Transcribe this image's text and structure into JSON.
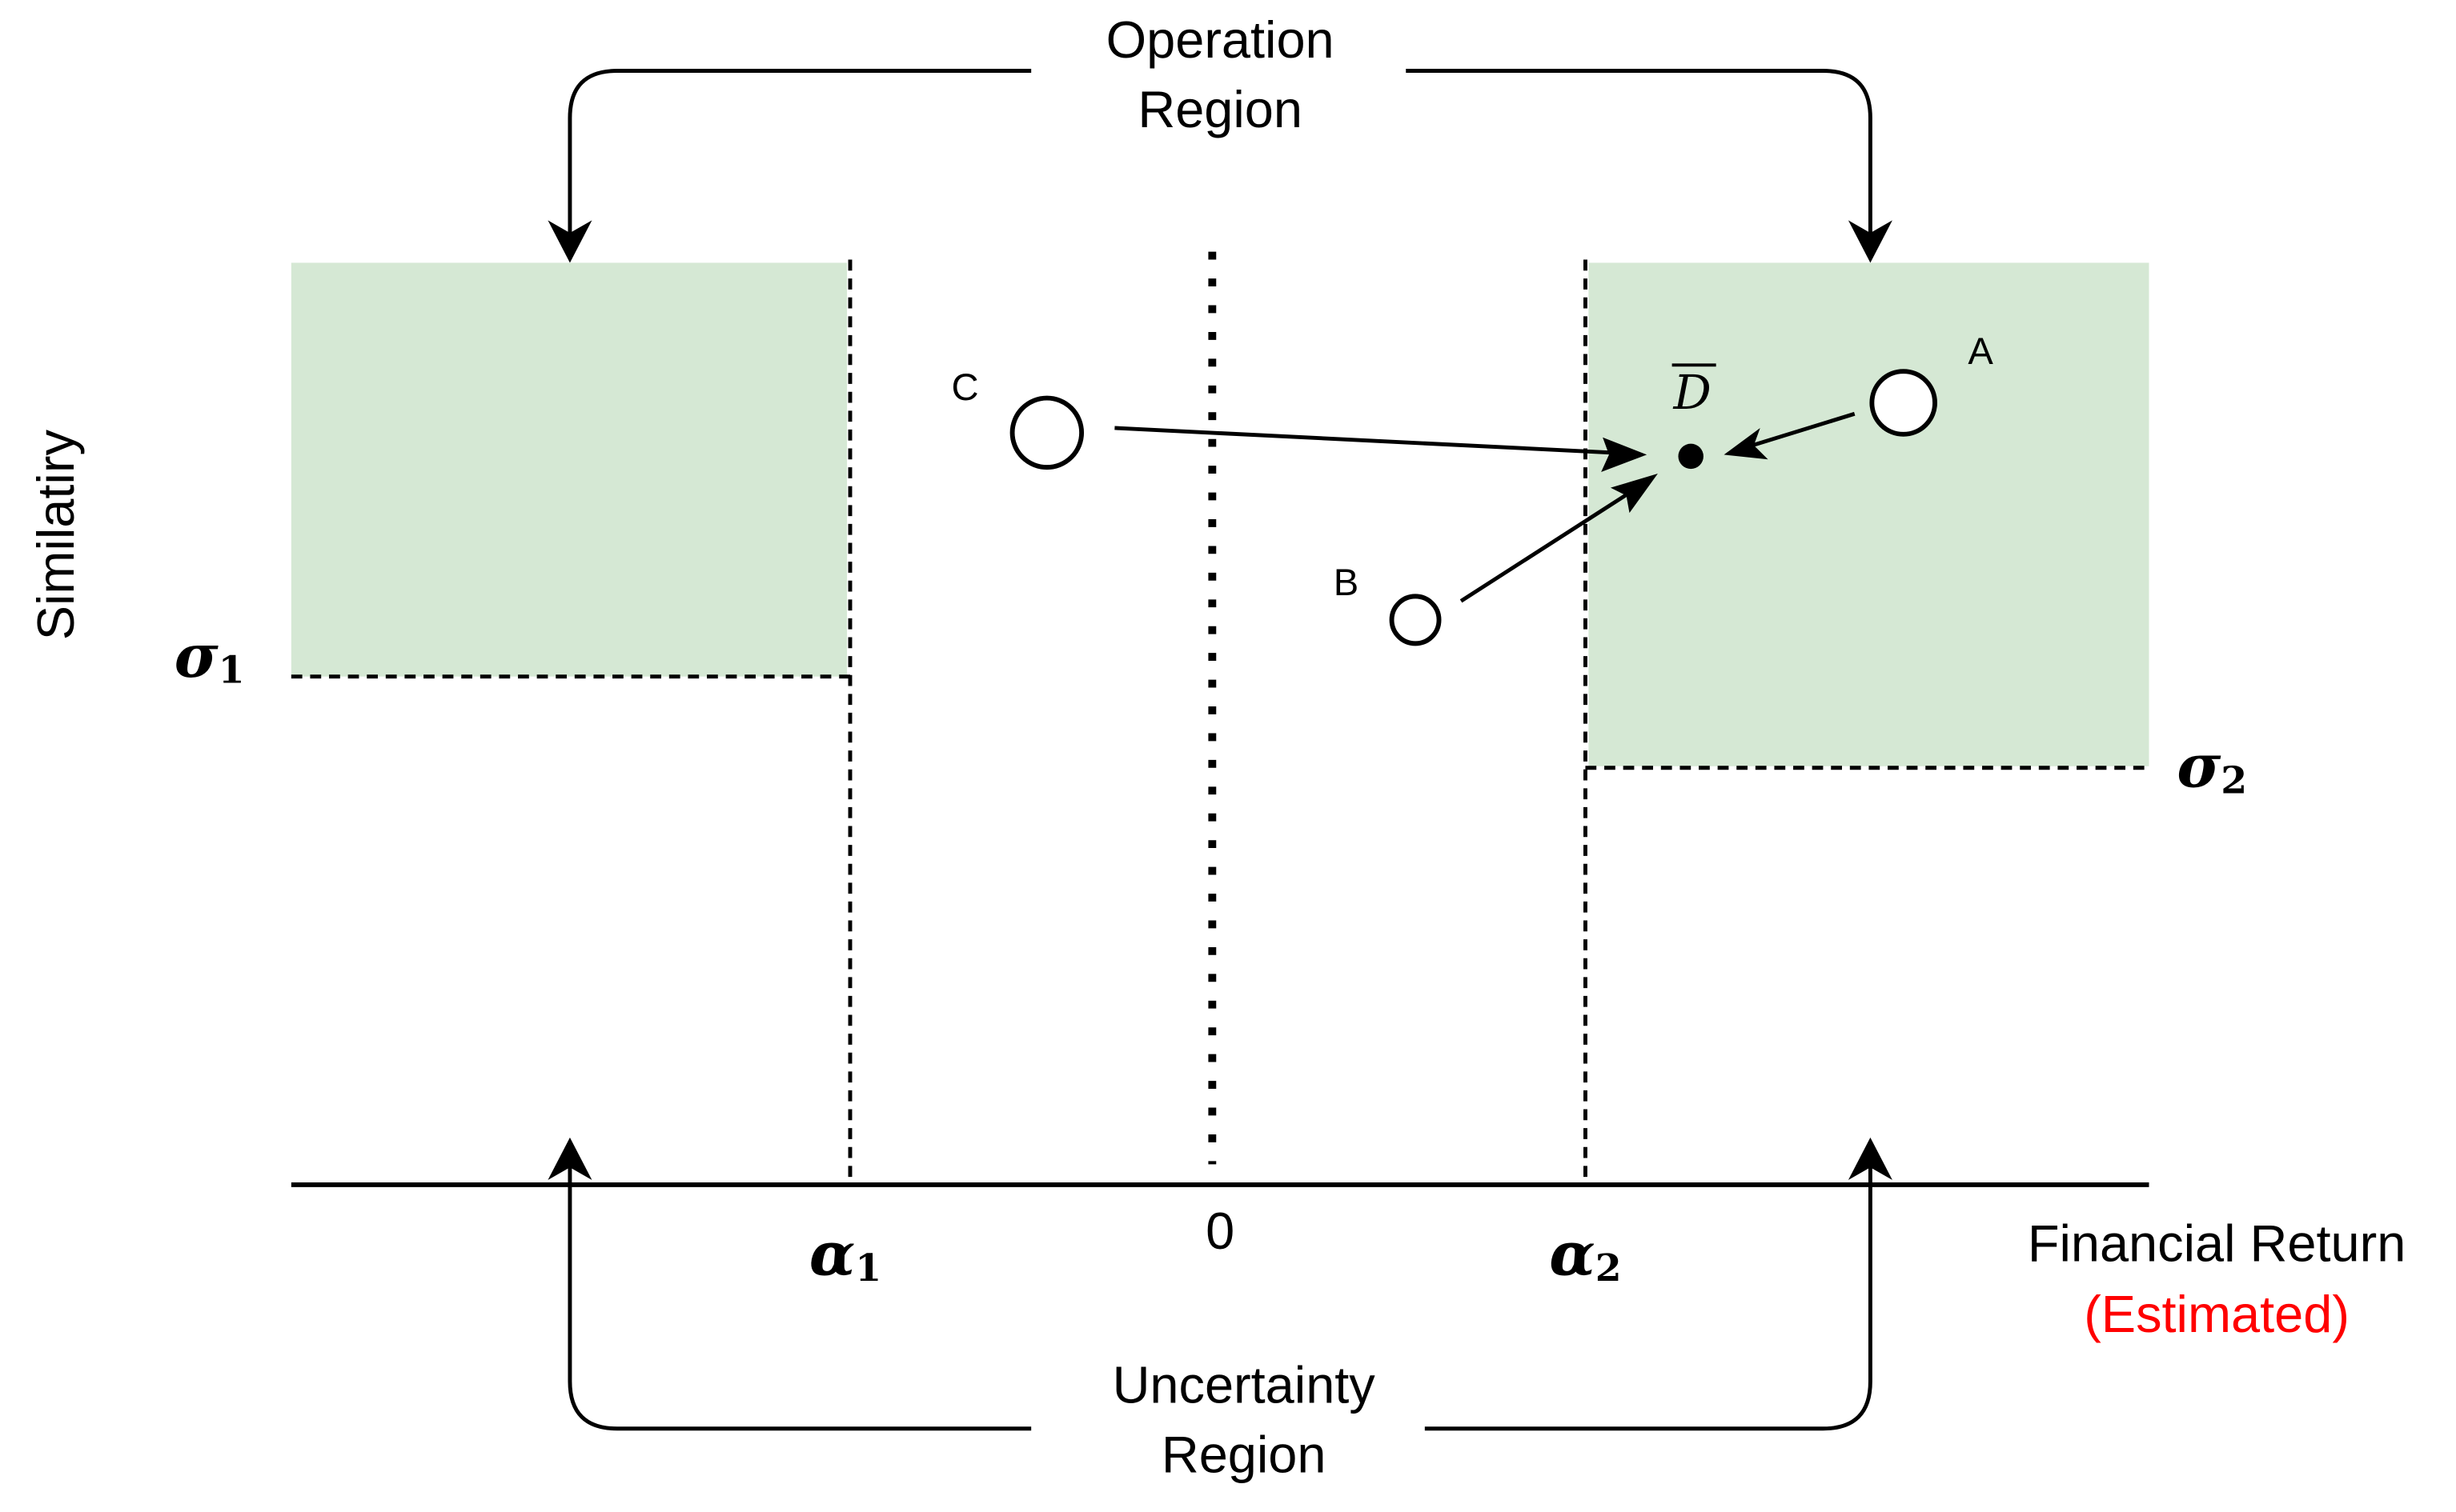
{
  "top_label": [
    "Operation",
    "Region"
  ],
  "bottom_label": [
    "Uncertainty",
    "Region"
  ],
  "y_axis_label": "Similatiry",
  "x_axis_label": "Financial Return",
  "x_axis_note": "(Estimated)",
  "points": {
    "a": "A",
    "b": "B",
    "c": "C",
    "d": "D"
  },
  "thresholds": {
    "sigma1": {
      "symbol": "σ",
      "subscript": "1"
    },
    "sigma2": {
      "symbol": "σ",
      "subscript": "2"
    },
    "alpha1": {
      "symbol": "α",
      "subscript": "1"
    },
    "alpha2": {
      "symbol": "α",
      "subscript": "2"
    },
    "zero": "0"
  }
}
